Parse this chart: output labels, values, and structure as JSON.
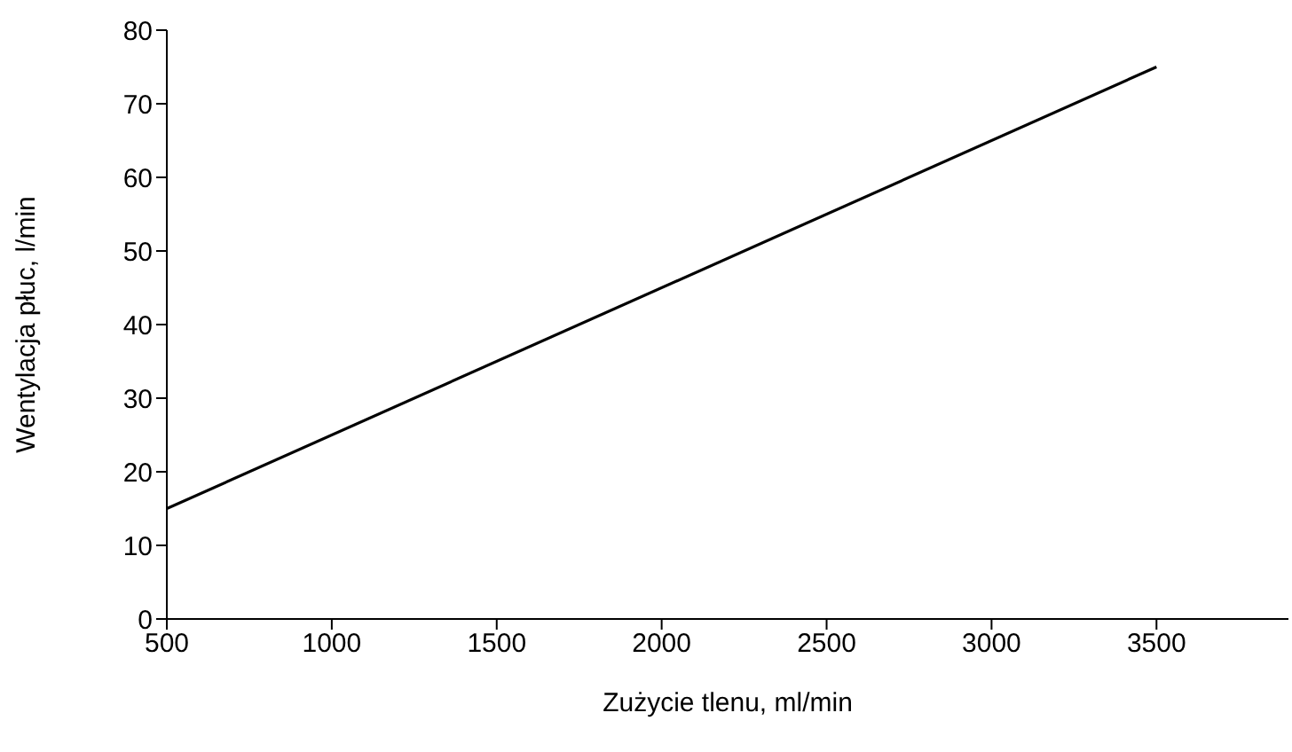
{
  "chart_data": {
    "type": "line",
    "xlabel": "Zużycie tlenu, ml/min",
    "ylabel": "Wentylacja płuc, l/min",
    "x": [
      500,
      3500
    ],
    "series": [
      {
        "color": "#000000",
        "values": [
          15,
          75
        ]
      }
    ],
    "xlim": [
      500,
      3900
    ],
    "xticks": [
      500,
      1000,
      1500,
      2000,
      2500,
      3000,
      3500
    ],
    "ylim": [
      0,
      80
    ],
    "yticks": [
      0,
      10,
      20,
      30,
      40,
      50,
      60,
      70,
      80
    ],
    "grid": false,
    "legend": false,
    "marker": "none",
    "line_style": "solid"
  }
}
